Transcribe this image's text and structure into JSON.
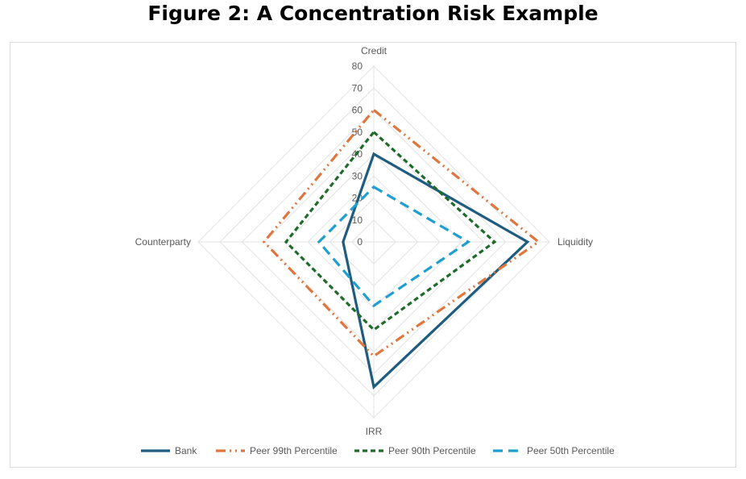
{
  "chart_data": {
    "type": "radar",
    "title": "Figure 2: A Concentration Risk Example",
    "categories": [
      "Credit",
      "Liquidity",
      "IRR",
      "Counterparty"
    ],
    "rlim": [
      0,
      80
    ],
    "ticks": [
      0,
      10,
      20,
      30,
      40,
      50,
      60,
      70,
      80
    ],
    "grid": true,
    "legend_position": "bottom",
    "series": [
      {
        "name": "Bank",
        "values": [
          40,
          70,
          66,
          14
        ],
        "color": "#1f5c7f",
        "dash": "solid"
      },
      {
        "name": "Peer 99th Percentile",
        "values": [
          60,
          75,
          52,
          50
        ],
        "color": "#e0763d",
        "dash": "dash-dot-dot"
      },
      {
        "name": "Peer 90th Percentile",
        "values": [
          50,
          55,
          40,
          40
        ],
        "color": "#1e6b2a",
        "dash": "dash"
      },
      {
        "name": "Peer 50th Percentile",
        "values": [
          25,
          43,
          29,
          25
        ],
        "color": "#1f9fd0",
        "dash": "long-dash"
      }
    ]
  }
}
